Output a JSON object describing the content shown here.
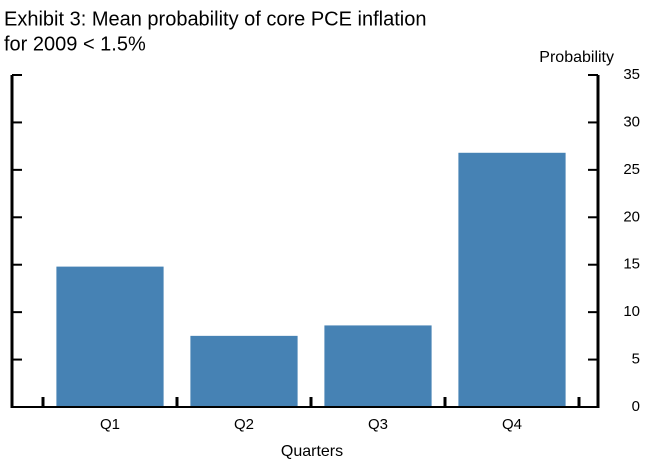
{
  "chart_data": {
    "type": "bar",
    "title": [
      "Exhibit 3: Mean probability of core PCE inflation",
      "for 2009 < 1.5%"
    ],
    "y_axis_label": "Probability",
    "x_axis_label": "Quarters",
    "categories": [
      "Q1",
      "Q2",
      "Q3",
      "Q4"
    ],
    "values": [
      14.8,
      7.5,
      8.6,
      26.8
    ],
    "color": "#4682b4",
    "ylim": [
      0,
      35
    ],
    "yticks": [
      0,
      5,
      10,
      15,
      20,
      25,
      30,
      35
    ],
    "grid": false
  }
}
